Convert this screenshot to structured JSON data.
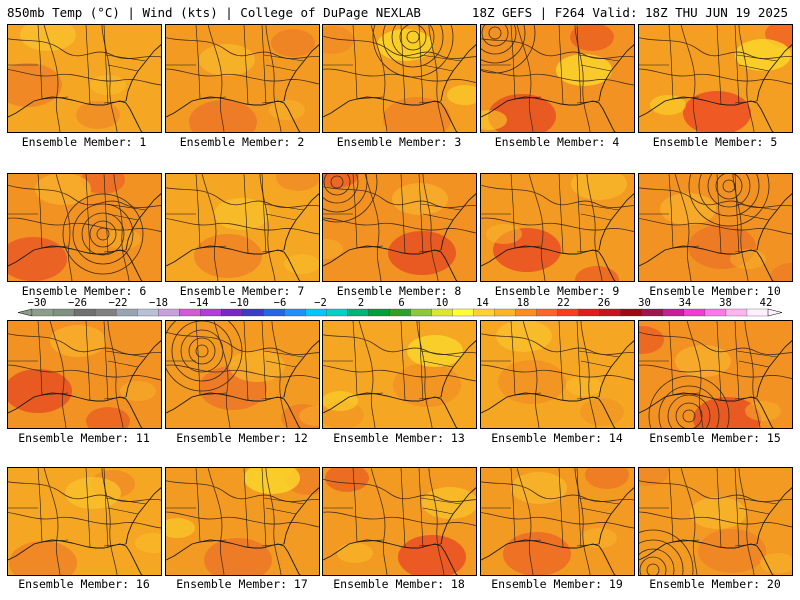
{
  "header": {
    "left": "850mb Temp (°C) | Wind (kts) | College of DuPage NEXLAB",
    "right": "18Z GEFS | F264 Valid: 18Z THU JUN 19 2025"
  },
  "members": [
    {
      "label": "Ensemble Member: 1",
      "base": "#f5a623",
      "hot": "#ee8426",
      "cool": "#f9c02a",
      "low": null
    },
    {
      "label": "Ensemble Member: 2",
      "base": "#f39a22",
      "hot": "#ec7727",
      "cool": "#f8b62a",
      "low": null
    },
    {
      "label": "Ensemble Member: 3",
      "base": "#f59f22",
      "hot": "#ef8426",
      "cool": "#fbd82c",
      "low": "north"
    },
    {
      "label": "Ensemble Member: 4",
      "base": "#f29223",
      "hot": "#e84f22",
      "cool": "#fbd82c",
      "low": "northwest"
    },
    {
      "label": "Ensemble Member: 5",
      "base": "#f59f22",
      "hot": "#ed4d25",
      "cool": "#fbd82c",
      "low": null
    },
    {
      "label": "Ensemble Member: 6",
      "base": "#f29223",
      "hot": "#ea5a24",
      "cool": "#f7b02a",
      "low": "center"
    },
    {
      "label": "Ensemble Member: 7",
      "base": "#f5a623",
      "hot": "#ee8426",
      "cool": "#f8c02a",
      "low": null
    },
    {
      "label": "Ensemble Member: 8",
      "base": "#f29223",
      "hot": "#e84f22",
      "cool": "#f8b02a",
      "low": "northwest"
    },
    {
      "label": "Ensemble Member: 9",
      "base": "#f39a22",
      "hot": "#e84f22",
      "cool": "#f8b62a",
      "low": null
    },
    {
      "label": "Ensemble Member: 10",
      "base": "#f29223",
      "hot": "#ec7727",
      "cool": "#f7b02a",
      "low": "north"
    },
    {
      "label": "Ensemble Member: 11",
      "base": "#f29223",
      "hot": "#e84f22",
      "cool": "#f7b02a",
      "low": null
    },
    {
      "label": "Ensemble Member: 12",
      "base": "#f39a22",
      "hot": "#ec7727",
      "cool": "#f7b02a",
      "low": "west"
    },
    {
      "label": "Ensemble Member: 13",
      "base": "#f5a623",
      "hot": "#f29223",
      "cool": "#fbd82c",
      "low": null
    },
    {
      "label": "Ensemble Member: 14",
      "base": "#f5a623",
      "hot": "#f29223",
      "cool": "#f9c02a",
      "low": null
    },
    {
      "label": "Ensemble Member: 15",
      "base": "#f29223",
      "hot": "#e84f22",
      "cool": "#f7b02a",
      "low": "south"
    },
    {
      "label": "Ensemble Member: 16",
      "base": "#f5a623",
      "hot": "#ee8426",
      "cool": "#f9c02a",
      "low": null
    },
    {
      "label": "Ensemble Member: 17",
      "base": "#f39a22",
      "hot": "#ec7727",
      "cool": "#fbd82c",
      "low": null
    },
    {
      "label": "Ensemble Member: 18",
      "base": "#f39a22",
      "hot": "#e84f22",
      "cool": "#f9c02a",
      "low": null
    },
    {
      "label": "Ensemble Member: 19",
      "base": "#f39a22",
      "hot": "#ec6a25",
      "cool": "#f8b62a",
      "low": null
    },
    {
      "label": "Ensemble Member: 20",
      "base": "#f39a22",
      "hot": "#ee8426",
      "cool": "#f8b62a",
      "low": "southwest"
    }
  ],
  "colorbar": {
    "colors": [
      "#8c9d8c",
      "#7f917f",
      "#707070",
      "#808080",
      "#9aa3b3",
      "#b8bfd6",
      "#c8a0dc",
      "#d25ad2",
      "#b43cdc",
      "#7828c8",
      "#3c3cc8",
      "#2864e6",
      "#1e90ff",
      "#00c8ff",
      "#00d2c8",
      "#00b478",
      "#00a03c",
      "#32a028",
      "#8cc83c",
      "#dce632",
      "#ffff32",
      "#ffd232",
      "#ffb428",
      "#ff8c1e",
      "#ff6428",
      "#ff3c1e",
      "#e6191e",
      "#c8141e",
      "#a00a14",
      "#a01450",
      "#c81e96",
      "#f03cd2",
      "#ff78e6",
      "#ffb4f0",
      "#fff0ff"
    ],
    "labels": [
      "−30",
      "−26",
      "−22",
      "−18",
      "−14",
      "−10",
      "−6",
      "−2",
      "2",
      "6",
      "10",
      "14",
      "18",
      "22",
      "26",
      "30",
      "34",
      "38",
      "42"
    ]
  }
}
